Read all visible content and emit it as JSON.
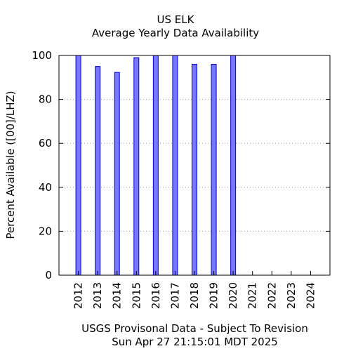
{
  "chart_data": {
    "type": "bar",
    "title": "US ELK",
    "subtitle": "Average Yearly Data Availability",
    "ylabel": "Percent Available ([00]/LHZ)",
    "xlabel": "",
    "categories": [
      "2012",
      "2013",
      "2014",
      "2015",
      "2016",
      "2017",
      "2018",
      "2019",
      "2020",
      "2021",
      "2022",
      "2023",
      "2024"
    ],
    "values": [
      100,
      95,
      92.3,
      99,
      100,
      100,
      96,
      96,
      100,
      null,
      null,
      null,
      null
    ],
    "ylim": [
      0,
      100
    ],
    "yticks": [
      0,
      20,
      40,
      60,
      80,
      100
    ],
    "grid": true,
    "bar_fill": "#7777ff",
    "bar_stroke": "#0000cc"
  },
  "footer": {
    "line1": "USGS Provisonal Data - Subject To Revision",
    "line2": "Sun Apr 27 21:15:01 MDT 2025"
  }
}
